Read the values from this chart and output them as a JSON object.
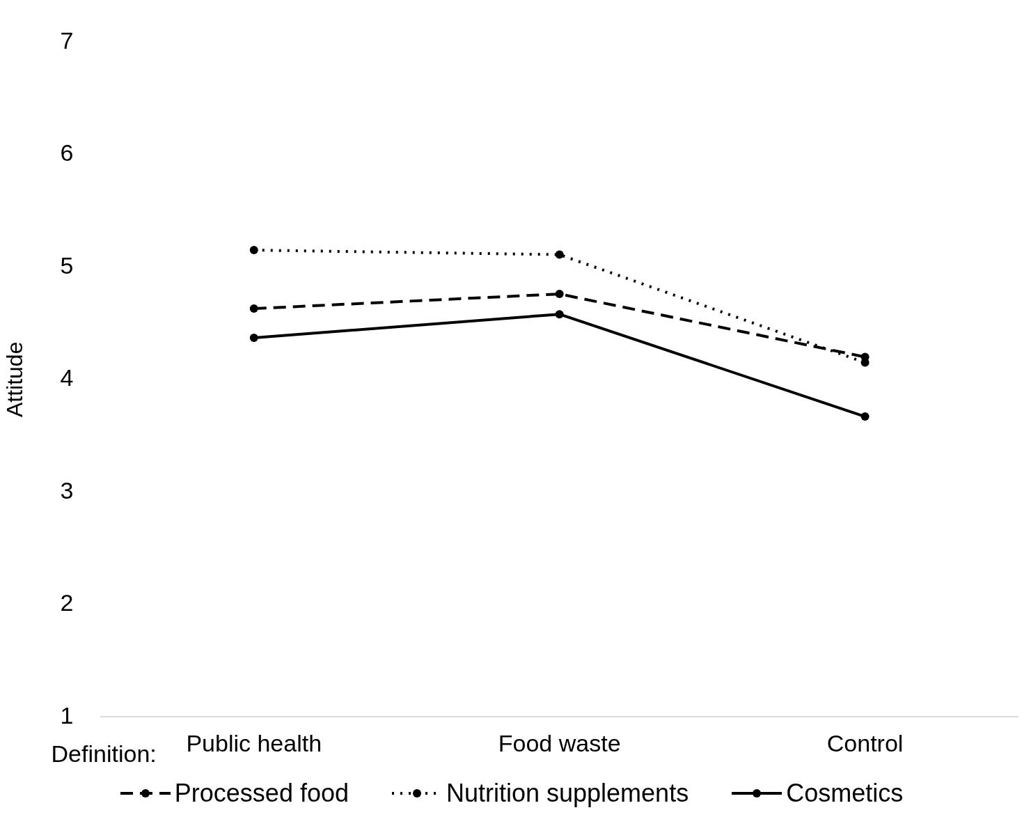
{
  "chart_data": {
    "type": "line",
    "xlabel": "Definition:",
    "ylabel": "Attitude",
    "categories": [
      "Public health",
      "Food waste",
      "Control"
    ],
    "series": [
      {
        "name": "Processed food",
        "color": "#000000",
        "line_style": "dashed",
        "values": [
          4.63,
          4.76,
          4.2
        ]
      },
      {
        "name": "Nutrition supplements",
        "color": "#000000",
        "line_style": "dotted",
        "values": [
          5.15,
          5.11,
          4.15
        ]
      },
      {
        "name": "Cosmetics",
        "color": "#000000",
        "line_style": "solid",
        "values": [
          4.37,
          4.58,
          3.67
        ]
      }
    ],
    "ylim": [
      1,
      7
    ],
    "yticks": [
      1,
      2,
      3,
      4,
      5,
      6,
      7
    ],
    "grid": false,
    "legend": "bottom",
    "marker": "circle"
  }
}
